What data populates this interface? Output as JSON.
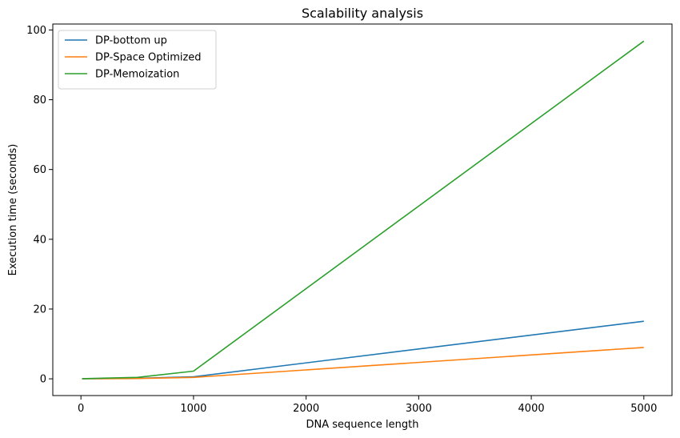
{
  "chart_data": {
    "type": "line",
    "title": "Scalability analysis",
    "xlabel": "DNA sequence length",
    "ylabel": "Execution time (seconds)",
    "xlim": [
      -250,
      5250
    ],
    "ylim": [
      -4.8,
      101.7
    ],
    "xticks": [
      0,
      1000,
      2000,
      3000,
      4000,
      5000
    ],
    "yticks": [
      0,
      20,
      40,
      60,
      80,
      100
    ],
    "grid": false,
    "legend_position": "top-left",
    "x": [
      10,
      500,
      1000,
      5000
    ],
    "series": [
      {
        "name": "DP-bottom up",
        "color": "#1f77b4",
        "values": [
          0.01,
          0.15,
          0.6,
          16.5
        ]
      },
      {
        "name": "DP-Space Optimized",
        "color": "#ff7f0e",
        "values": [
          0.01,
          0.1,
          0.4,
          9.0
        ]
      },
      {
        "name": "DP-Memoization",
        "color": "#2ca02c",
        "values": [
          0.05,
          0.4,
          2.2,
          96.8
        ]
      }
    ]
  }
}
